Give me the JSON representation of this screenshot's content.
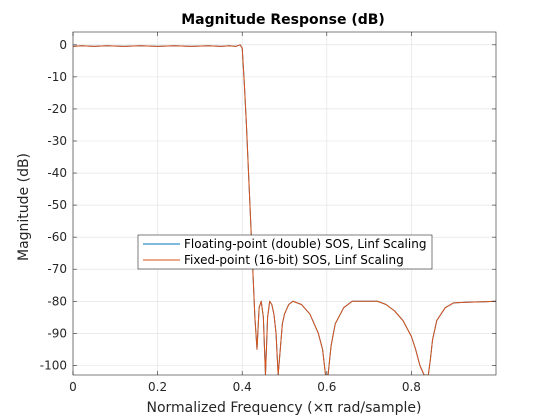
{
  "chart_data": {
    "type": "line",
    "title": "Magnitude Response (dB)",
    "xlabel": "Normalized Frequency (×π rad/sample)",
    "ylabel": "Magnitude (dB)",
    "xlim": [
      0,
      1
    ],
    "ylim": [
      -103,
      4
    ],
    "xticks": [
      0,
      0.2,
      0.4,
      0.6,
      0.8
    ],
    "xtick_labels": [
      "0",
      "0.2",
      "0.4",
      "0.6",
      "0.8"
    ],
    "yticks": [
      0,
      -10,
      -20,
      -30,
      -40,
      -50,
      -60,
      -70,
      -80,
      -90,
      -100
    ],
    "ytick_labels": [
      "0",
      "-10",
      "-20",
      "-30",
      "-40",
      "-50",
      "-60",
      "-70",
      "-80",
      "-90",
      "-100"
    ],
    "grid": true,
    "legend_placement": "center-left",
    "series": [
      {
        "name": "Floating-point (double) SOS, Linf Scaling",
        "color": "#0072bd",
        "x": [
          0,
          0.02,
          0.05,
          0.08,
          0.12,
          0.16,
          0.2,
          0.24,
          0.28,
          0.32,
          0.35,
          0.37,
          0.385,
          0.395,
          0.4,
          0.405,
          0.41,
          0.415,
          0.42,
          0.425,
          0.43,
          0.435,
          0.44,
          0.445,
          0.45,
          0.455,
          0.46,
          0.465,
          0.47,
          0.475,
          0.48,
          0.485,
          0.49,
          0.495,
          0.5,
          0.51,
          0.52,
          0.54,
          0.56,
          0.58,
          0.59,
          0.597,
          0.6,
          0.603,
          0.61,
          0.62,
          0.64,
          0.66,
          0.68,
          0.7,
          0.72,
          0.74,
          0.76,
          0.78,
          0.8,
          0.81,
          0.82,
          0.83,
          0.835,
          0.84,
          0.845,
          0.85,
          0.86,
          0.88,
          0.9,
          0.93,
          0.96,
          0.98,
          1.0
        ],
        "y": [
          -0.5,
          -0.3,
          -0.5,
          -0.3,
          -0.5,
          -0.3,
          -0.5,
          -0.3,
          -0.5,
          -0.3,
          -0.5,
          -0.3,
          -0.5,
          0,
          -1,
          -12,
          -25,
          -40,
          -55,
          -70,
          -85,
          -95,
          -82,
          -80,
          -85,
          -103,
          -85,
          -80,
          -81,
          -84,
          -90,
          -103,
          -95,
          -87,
          -84,
          -81,
          -80,
          -81,
          -84,
          -90,
          -95,
          -103,
          -103,
          -103,
          -94,
          -87,
          -82,
          -80,
          -80,
          -80,
          -80,
          -81,
          -83,
          -86,
          -91,
          -95,
          -100,
          -103,
          -103,
          -103,
          -98,
          -92,
          -86,
          -82,
          -80.5,
          -80.3,
          -80.2,
          -80.1,
          -80
        ]
      },
      {
        "name": "Fixed-point (16-bit) SOS, Linf Scaling",
        "color": "#d95319",
        "x": [
          0,
          0.02,
          0.05,
          0.08,
          0.12,
          0.16,
          0.2,
          0.24,
          0.28,
          0.32,
          0.35,
          0.37,
          0.385,
          0.395,
          0.4,
          0.405,
          0.41,
          0.415,
          0.42,
          0.425,
          0.43,
          0.435,
          0.44,
          0.445,
          0.45,
          0.455,
          0.46,
          0.465,
          0.47,
          0.475,
          0.48,
          0.485,
          0.49,
          0.495,
          0.5,
          0.51,
          0.52,
          0.54,
          0.56,
          0.58,
          0.59,
          0.597,
          0.6,
          0.603,
          0.61,
          0.62,
          0.64,
          0.66,
          0.68,
          0.7,
          0.72,
          0.74,
          0.76,
          0.78,
          0.8,
          0.81,
          0.82,
          0.83,
          0.835,
          0.84,
          0.845,
          0.85,
          0.86,
          0.88,
          0.9,
          0.93,
          0.96,
          0.98,
          1.0
        ],
        "y": [
          -0.5,
          -0.3,
          -0.5,
          -0.3,
          -0.5,
          -0.3,
          -0.5,
          -0.3,
          -0.5,
          -0.3,
          -0.5,
          -0.3,
          -0.5,
          0,
          -1,
          -12,
          -25,
          -40,
          -55,
          -70,
          -85,
          -95,
          -82,
          -80,
          -85,
          -103,
          -85,
          -80,
          -81,
          -84,
          -90,
          -103,
          -95,
          -87,
          -84,
          -81,
          -80,
          -81,
          -84,
          -90,
          -95,
          -103,
          -103,
          -103,
          -94,
          -87,
          -82,
          -80,
          -80,
          -80,
          -80,
          -81,
          -83,
          -86,
          -91,
          -95,
          -100,
          -103,
          -103,
          -103,
          -98,
          -92,
          -86,
          -82,
          -80.5,
          -80.3,
          -80.2,
          -80.1,
          -80
        ]
      }
    ]
  }
}
